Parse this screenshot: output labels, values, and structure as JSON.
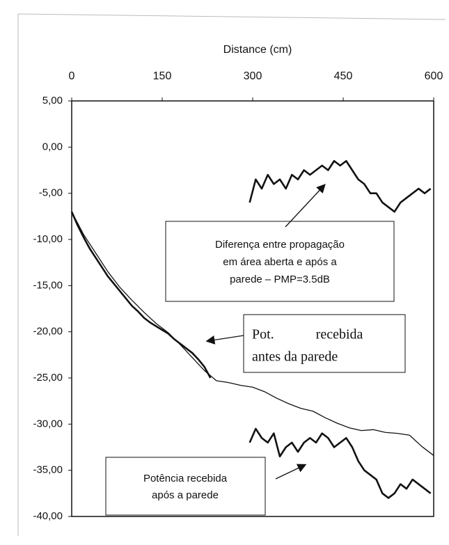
{
  "chart_data": {
    "type": "line",
    "x_label": "Distance (cm)",
    "xlim": [
      0,
      600
    ],
    "xticks": [
      0,
      150,
      300,
      450,
      600
    ],
    "ylim": [
      -40,
      5
    ],
    "yticks": [
      {
        "value": 5,
        "label": "5,00"
      },
      {
        "value": 0,
        "label": "0,00"
      },
      {
        "value": -5,
        "label": "-5,00"
      },
      {
        "value": -10,
        "label": "-10,00"
      },
      {
        "value": -15,
        "label": "-15,00"
      },
      {
        "value": -20,
        "label": "-20,00"
      },
      {
        "value": -25,
        "label": "-25,00"
      },
      {
        "value": -30,
        "label": "-30,00"
      },
      {
        "value": -35,
        "label": "-35,00"
      },
      {
        "value": -40,
        "label": "-40,00"
      }
    ],
    "series": [
      {
        "color": "#111",
        "width": 1.3,
        "x": [
          0,
          20,
          40,
          60,
          80,
          100,
          120,
          140,
          160,
          180,
          200,
          220,
          240,
          260,
          280,
          300,
          320,
          340,
          360,
          380,
          400,
          420,
          440,
          460,
          480,
          500,
          520,
          540,
          560,
          580,
          600
        ],
        "values": [
          -7,
          -9.5,
          -11.5,
          -13.5,
          -15.2,
          -16.6,
          -17.9,
          -19.1,
          -20.1,
          -21.4,
          -22.8,
          -24.2,
          -25.3,
          -25.5,
          -25.8,
          -26,
          -26.5,
          -27.2,
          -27.8,
          -28.3,
          -28.6,
          -29.3,
          -29.9,
          -30.4,
          -30.7,
          -30.6,
          -30.9,
          -31,
          -31.2,
          -32.4,
          -33.4
        ]
      },
      {
        "color": "#111",
        "width": 2.6,
        "x": [
          0,
          10,
          20,
          30,
          40,
          50,
          60,
          70,
          80,
          90,
          100,
          110,
          120,
          130,
          140,
          150,
          160,
          170,
          180,
          190,
          200,
          210,
          220,
          230
        ],
        "values": [
          -7,
          -8.5,
          -9.8,
          -11,
          -12,
          -13,
          -14,
          -14.8,
          -15.6,
          -16.4,
          -17.2,
          -17.8,
          -18.5,
          -19,
          -19.4,
          -19.8,
          -20.2,
          -20.8,
          -21.3,
          -21.8,
          -22.3,
          -23,
          -23.8,
          -25
        ]
      },
      {
        "color": "#111",
        "width": 2.6,
        "x": [
          295,
          305,
          315,
          325,
          335,
          345,
          355,
          365,
          375,
          385,
          395,
          405,
          415,
          425,
          435,
          445,
          455,
          465,
          475,
          485,
          495,
          505,
          515,
          525,
          535,
          545,
          555,
          565,
          575,
          585,
          595
        ],
        "values": [
          -32,
          -30.5,
          -31.5,
          -32,
          -31,
          -33.5,
          -32.5,
          -32,
          -33,
          -32,
          -31.5,
          -32,
          -31,
          -31.5,
          -32.5,
          -32,
          -31.5,
          -32.5,
          -34,
          -35,
          -35.5,
          -36,
          -37.5,
          -38,
          -37.5,
          -36.5,
          -37,
          -36,
          -36.5,
          -37,
          -37.5
        ]
      },
      {
        "color": "#111",
        "width": 2.6,
        "x": [
          295,
          305,
          315,
          325,
          335,
          345,
          355,
          365,
          375,
          385,
          395,
          405,
          415,
          425,
          435,
          445,
          455,
          465,
          475,
          485,
          495,
          505,
          515,
          525,
          535,
          545,
          555,
          565,
          575,
          585,
          595
        ],
        "values": [
          -6,
          -3.5,
          -4.5,
          -3,
          -4,
          -3.5,
          -4.5,
          -3,
          -3.5,
          -2.5,
          -3,
          -2.5,
          -2,
          -2.5,
          -1.5,
          -2,
          -1.5,
          -2.5,
          -3.5,
          -4,
          -5,
          -5,
          -6,
          -6.5,
          -7,
          -6,
          -5.5,
          -5,
          -4.5,
          -5,
          -4.5
        ]
      }
    ],
    "annotations": [
      {
        "lines": [
          "Diferença entre propagação",
          "em área aberta e após a",
          "parede – PMP=3.5dB"
        ]
      },
      {
        "lines": [
          "Pot.            recebida",
          "antes da parede"
        ]
      },
      {
        "lines": [
          "Potência recebida",
          "após a parede"
        ]
      }
    ]
  }
}
